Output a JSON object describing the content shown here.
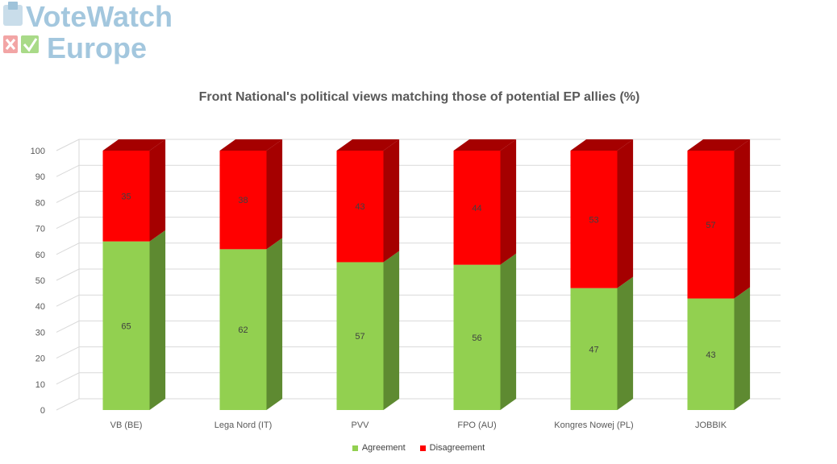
{
  "logo": {
    "line1": "VoteWatch",
    "line2": "Europe"
  },
  "chart_data": {
    "type": "bar",
    "stacked": true,
    "three_d": true,
    "title": "Front National's political views matching those of potential EP allies (%)",
    "categories": [
      "VB (BE)",
      "Lega Nord (IT)",
      "PVV",
      "FPO (AU)",
      "Kongres Nowej (PL)",
      "JOBBIK"
    ],
    "series": [
      {
        "name": "Agreement",
        "values": [
          65,
          62,
          57,
          56,
          47,
          43
        ],
        "color": "#92D050",
        "side_color": "#5E8A31"
      },
      {
        "name": "Disagreement",
        "values": [
          35,
          38,
          43,
          44,
          53,
          57
        ],
        "color": "#FF0000",
        "side_color": "#A50000"
      }
    ],
    "ylim": [
      0,
      100
    ],
    "yticks": [
      "0",
      "10",
      "20",
      "30",
      "40",
      "50",
      "60",
      "70",
      "80",
      "90",
      "100"
    ],
    "grid": true,
    "legend_position": "bottom"
  }
}
